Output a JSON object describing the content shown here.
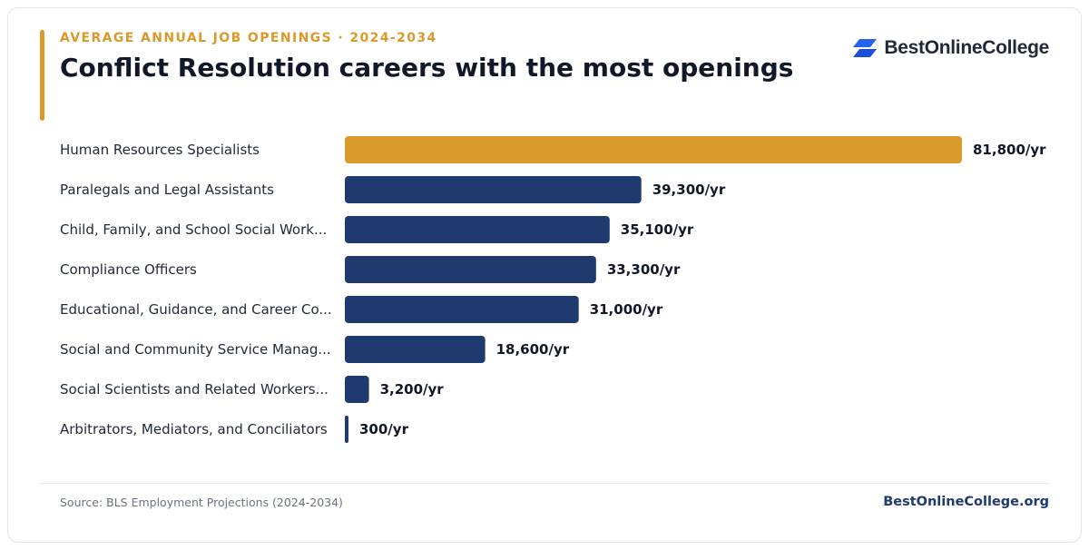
{
  "header": {
    "eyebrow": "AVERAGE ANNUAL JOB OPENINGS · 2024-2034",
    "title": "Conflict Resolution careers with the most openings"
  },
  "brand": {
    "name": "BestOnlineCollege",
    "logo_icon": "stacked-parallelogram-logo",
    "logo_color": "#2563eb"
  },
  "colors": {
    "highlight": "#d99a2b",
    "bar": "#1e3a6e"
  },
  "chart_data": {
    "type": "bar",
    "orientation": "horizontal",
    "categories": [
      "Human Resources Specialists",
      "Paralegals and Legal Assistants",
      "Child, Family, and School Social Work...",
      "Compliance Officers",
      "Educational, Guidance, and Career Co...",
      "Social and Community Service Manag...",
      "Social Scientists and Related Workers...",
      "Arbitrators, Mediators, and Conciliators"
    ],
    "values": [
      81800,
      39300,
      35100,
      33300,
      31000,
      18600,
      3200,
      300
    ],
    "value_labels": [
      "81,800/yr",
      "39,300/yr",
      "35,100/yr",
      "33,300/yr",
      "31,000/yr",
      "18,600/yr",
      "3,200/yr",
      "300/yr"
    ],
    "highlight_index": 0,
    "xlim": [
      0,
      81800
    ],
    "grid": false,
    "legend": "none"
  },
  "footer": {
    "source": "Source: BLS Employment Projections (2024-2034)",
    "site": "BestOnlineCollege.org"
  }
}
